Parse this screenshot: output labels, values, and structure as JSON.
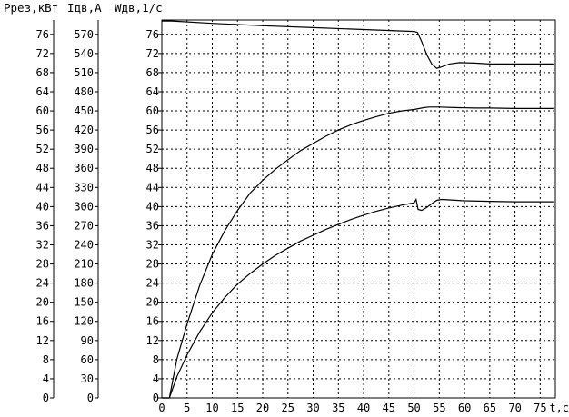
{
  "chart_data": {
    "type": "line",
    "headers": [
      "Ррез,кВт",
      "Iдв,А",
      "Wдв,1/с"
    ],
    "x": {
      "label": "t,c",
      "ticks": [
        0,
        5,
        10,
        15,
        20,
        25,
        30,
        35,
        40,
        45,
        50,
        55,
        60,
        65,
        70,
        75
      ],
      "range": [
        0,
        78
      ]
    },
    "y_axes": [
      {
        "name": "Ррез,кВт",
        "ticks": [
          0,
          4,
          8,
          12,
          16,
          20,
          24,
          28,
          32,
          36,
          40,
          44,
          48,
          52,
          56,
          60,
          64,
          68,
          72,
          76
        ]
      },
      {
        "name": "Iдв,А",
        "ticks": [
          0,
          30,
          60,
          90,
          120,
          150,
          180,
          210,
          240,
          270,
          300,
          330,
          360,
          390,
          420,
          450,
          480,
          510,
          540,
          570
        ]
      },
      {
        "name": "Wдв,1/с",
        "ticks": [
          0,
          4,
          8,
          12,
          16,
          20,
          24,
          28,
          32,
          36,
          40,
          44,
          48,
          52,
          56,
          60,
          64,
          68,
          72,
          76
        ]
      }
    ],
    "ylim": [
      0,
      79
    ],
    "grid": true,
    "series": [
      {
        "x": [
          0,
          2,
          10,
          20,
          30,
          40,
          50,
          50.7,
          51.5,
          52.5,
          53.5,
          54.5,
          55.5,
          57,
          59,
          62,
          65,
          70,
          75,
          77.6
        ],
        "y": [
          78.8,
          78.8,
          78.3,
          77.8,
          77.4,
          77.0,
          76.6,
          76.4,
          74.5,
          71.8,
          69.8,
          68.9,
          69.2,
          69.8,
          70.1,
          70.0,
          69.8,
          69.8,
          69.8,
          69.8
        ]
      },
      {
        "x": [
          0,
          1.5,
          3,
          5,
          7.5,
          10,
          12.5,
          15,
          17.5,
          20,
          22.5,
          25,
          27.5,
          30,
          32.5,
          35,
          37.5,
          40,
          42.5,
          45,
          47.5,
          50,
          52,
          53,
          54,
          55,
          58,
          62,
          65,
          70,
          75,
          77.6
        ],
        "y": [
          0,
          0,
          8.2,
          15.5,
          23.5,
          30.0,
          35.0,
          39.2,
          42.8,
          45.5,
          47.8,
          49.8,
          51.7,
          53.2,
          54.7,
          56.0,
          57.1,
          58.0,
          58.8,
          59.5,
          60.0,
          60.3,
          60.7,
          60.8,
          60.8,
          60.8,
          60.7,
          60.6,
          60.6,
          60.5,
          60.5,
          60.5
        ]
      },
      {
        "x": [
          0,
          1.5,
          3,
          5,
          7.5,
          10,
          12.5,
          15,
          17.5,
          20,
          22.5,
          25,
          27.5,
          30,
          32.5,
          35,
          37.5,
          40,
          42.5,
          45,
          47.5,
          50,
          50.4,
          50.8,
          51.5,
          52.5,
          53.5,
          54.5,
          55.5,
          57,
          60,
          65,
          70,
          75,
          77.6
        ],
        "y": [
          0,
          0,
          4.5,
          9.0,
          13.8,
          17.8,
          21.0,
          23.8,
          26.0,
          28.0,
          29.8,
          31.3,
          32.8,
          34.0,
          35.2,
          36.3,
          37.3,
          38.2,
          39.0,
          39.7,
          40.3,
          40.8,
          41.5,
          39.4,
          39.2,
          39.8,
          40.6,
          41.3,
          41.5,
          41.4,
          41.2,
          41.1,
          41.0,
          41.0,
          41.0
        ]
      }
    ]
  }
}
